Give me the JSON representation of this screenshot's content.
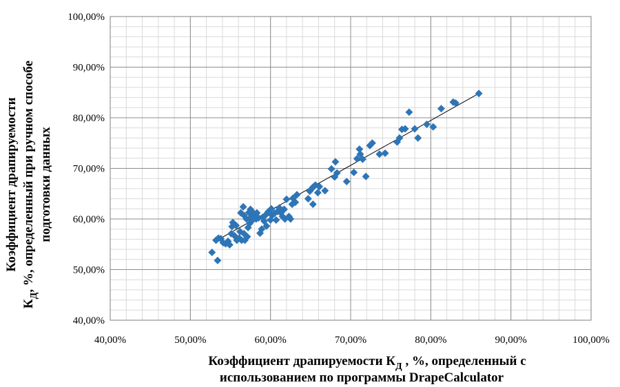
{
  "chart_data": {
    "type": "scatter",
    "xlabel_lines": [
      "Коэффициент драпируемости К",
      "Д",
      " , %, определенный с",
      "использованием   по программы DrapeCalculator"
    ],
    "ylabel_lines": [
      "Коэффициент  драпируемости",
      "К",
      "Д",
      ", %, определенный при ручном способе",
      "подготовки данных"
    ],
    "xlim": [
      0.4,
      1.0
    ],
    "ylim": [
      0.4,
      1.0
    ],
    "x_ticks": [
      0.4,
      0.5,
      0.6,
      0.7,
      0.8,
      0.9,
      1.0
    ],
    "y_ticks": [
      0.4,
      0.5,
      0.6,
      0.7,
      0.8,
      0.9,
      1.0
    ],
    "x_tick_labels": [
      "40,00%",
      "50,00%",
      "60,00%",
      "70,00%",
      "80,00%",
      "90,00%",
      "100,00%"
    ],
    "y_tick_labels": [
      "40,00%",
      "50,00%",
      "60,00%",
      "70,00%",
      "80,00%",
      "90,00%",
      "100,00%"
    ],
    "grid": true,
    "minor_grid_step": 0.02,
    "marker_color": "#2E75B6",
    "trendline_color": "#000000",
    "trendline": {
      "x": [
        0.53,
        0.86
      ],
      "y": [
        0.555,
        0.848
      ]
    },
    "series": [
      {
        "points": [
          [
            0.527,
            0.534
          ],
          [
            0.532,
            0.558
          ],
          [
            0.534,
            0.518
          ],
          [
            0.535,
            0.562
          ],
          [
            0.538,
            0.561
          ],
          [
            0.541,
            0.553
          ],
          [
            0.544,
            0.551
          ],
          [
            0.547,
            0.556
          ],
          [
            0.549,
            0.549
          ],
          [
            0.551,
            0.571
          ],
          [
            0.552,
            0.585
          ],
          [
            0.553,
            0.593
          ],
          [
            0.555,
            0.567
          ],
          [
            0.557,
            0.587
          ],
          [
            0.558,
            0.558
          ],
          [
            0.561,
            0.562
          ],
          [
            0.562,
            0.575
          ],
          [
            0.563,
            0.612
          ],
          [
            0.564,
            0.558
          ],
          [
            0.566,
            0.624
          ],
          [
            0.567,
            0.607
          ],
          [
            0.567,
            0.571
          ],
          [
            0.568,
            0.558
          ],
          [
            0.57,
            0.6
          ],
          [
            0.571,
            0.565
          ],
          [
            0.572,
            0.583
          ],
          [
            0.573,
            0.613
          ],
          [
            0.574,
            0.591
          ],
          [
            0.575,
            0.619
          ],
          [
            0.576,
            0.604
          ],
          [
            0.577,
            0.597
          ],
          [
            0.578,
            0.613
          ],
          [
            0.58,
            0.607
          ],
          [
            0.582,
            0.6
          ],
          [
            0.583,
            0.612
          ],
          [
            0.585,
            0.602
          ],
          [
            0.587,
            0.572
          ],
          [
            0.589,
            0.58
          ],
          [
            0.59,
            0.603
          ],
          [
            0.592,
            0.596
          ],
          [
            0.594,
            0.608
          ],
          [
            0.595,
            0.586
          ],
          [
            0.597,
            0.614
          ],
          [
            0.6,
            0.598
          ],
          [
            0.601,
            0.62
          ],
          [
            0.602,
            0.607
          ],
          [
            0.605,
            0.611
          ],
          [
            0.607,
            0.598
          ],
          [
            0.609,
            0.615
          ],
          [
            0.611,
            0.622
          ],
          [
            0.613,
            0.612
          ],
          [
            0.615,
            0.605
          ],
          [
            0.617,
            0.619
          ],
          [
            0.618,
            0.6
          ],
          [
            0.62,
            0.639
          ],
          [
            0.623,
            0.605
          ],
          [
            0.625,
            0.6
          ],
          [
            0.627,
            0.629
          ],
          [
            0.628,
            0.641
          ],
          [
            0.631,
            0.633
          ],
          [
            0.633,
            0.648
          ],
          [
            0.647,
            0.64
          ],
          [
            0.649,
            0.655
          ],
          [
            0.651,
            0.659
          ],
          [
            0.653,
            0.663
          ],
          [
            0.653,
            0.629
          ],
          [
            0.656,
            0.667
          ],
          [
            0.659,
            0.652
          ],
          [
            0.661,
            0.664
          ],
          [
            0.668,
            0.656
          ],
          [
            0.676,
            0.699
          ],
          [
            0.68,
            0.683
          ],
          [
            0.681,
            0.713
          ],
          [
            0.683,
            0.691
          ],
          [
            0.695,
            0.674
          ],
          [
            0.704,
            0.692
          ],
          [
            0.708,
            0.719
          ],
          [
            0.711,
            0.738
          ],
          [
            0.712,
            0.728
          ],
          [
            0.715,
            0.718
          ],
          [
            0.719,
            0.684
          ],
          [
            0.724,
            0.745
          ],
          [
            0.727,
            0.75
          ],
          [
            0.736,
            0.728
          ],
          [
            0.743,
            0.73
          ],
          [
            0.758,
            0.752
          ],
          [
            0.761,
            0.76
          ],
          [
            0.764,
            0.777
          ],
          [
            0.768,
            0.778
          ],
          [
            0.773,
            0.811
          ],
          [
            0.78,
            0.778
          ],
          [
            0.784,
            0.76
          ],
          [
            0.795,
            0.787
          ],
          [
            0.803,
            0.782
          ],
          [
            0.813,
            0.818
          ],
          [
            0.828,
            0.831
          ],
          [
            0.831,
            0.829
          ],
          [
            0.86,
            0.848
          ]
        ]
      }
    ]
  }
}
